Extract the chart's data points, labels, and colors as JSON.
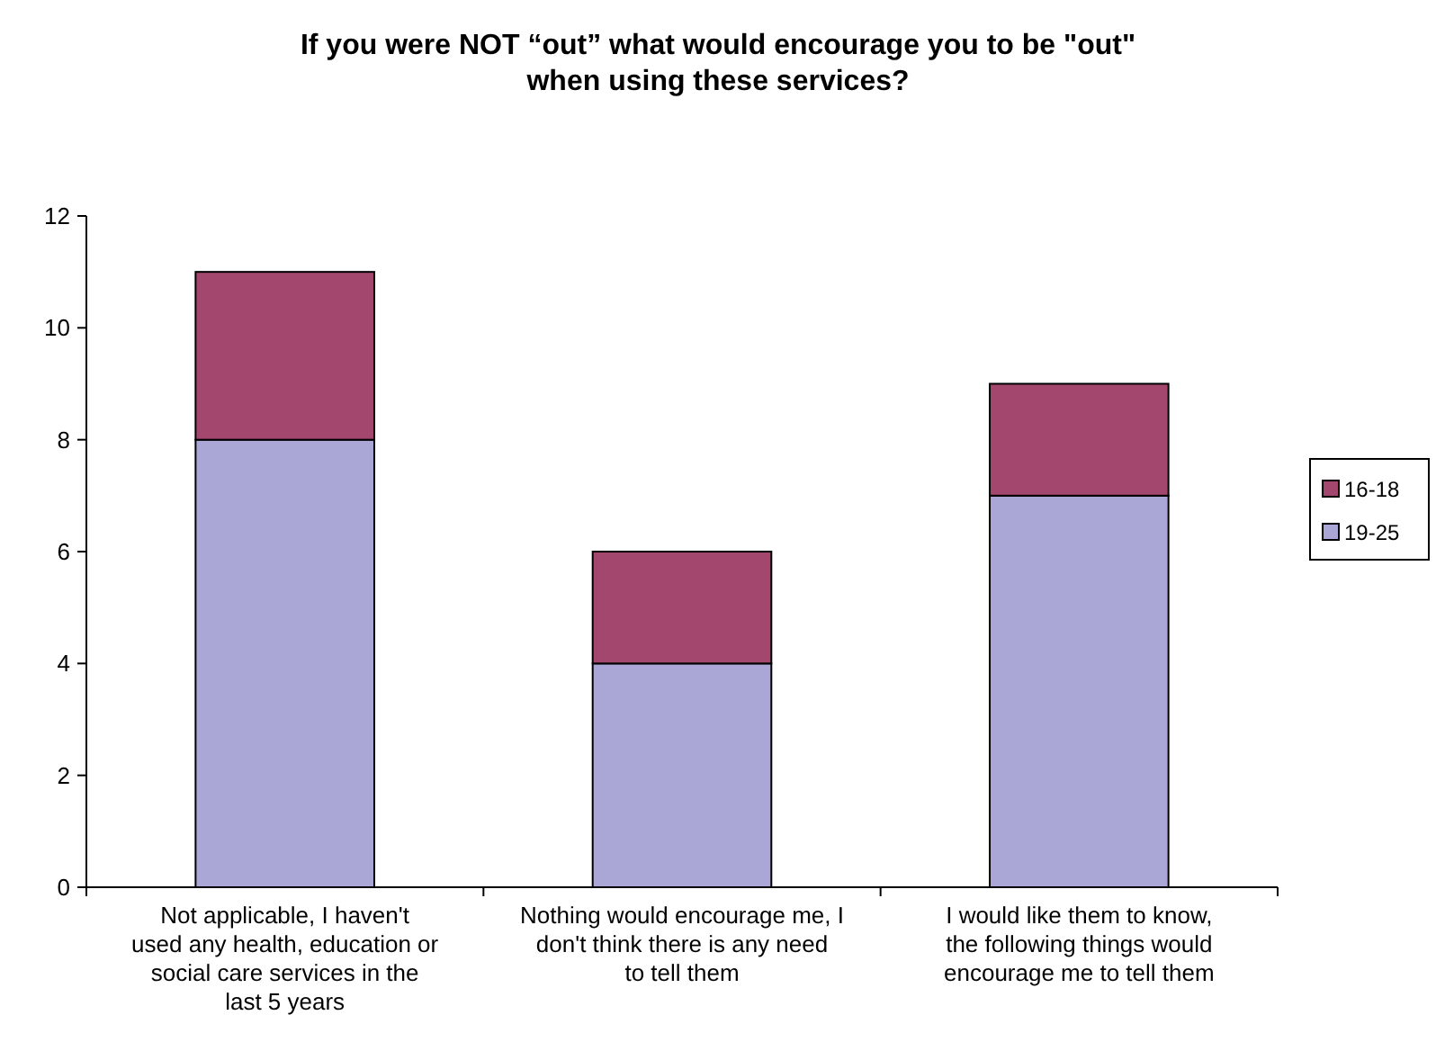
{
  "chart_data": {
    "type": "bar",
    "title": "If you were NOT “out” what would encourage you to be \"out\" when using these services?",
    "categories": [
      "Not applicable, I haven't used any health, education or social care services in the last 5 years",
      "Nothing would encourage me, I don't think there is any need to tell them",
      "I would like them to know, the following things would encourage me to tell them"
    ],
    "series": [
      {
        "name": "19-25",
        "color": "#aaa6d6",
        "values": [
          8,
          4,
          7
        ]
      },
      {
        "name": "16-18",
        "color": "#a3476e",
        "values": [
          3,
          2,
          2
        ]
      }
    ],
    "stacked": true,
    "ylim": [
      0,
      12
    ],
    "yticks": [
      0,
      2,
      4,
      6,
      8,
      10,
      12
    ],
    "grid": false,
    "legend": "right"
  }
}
